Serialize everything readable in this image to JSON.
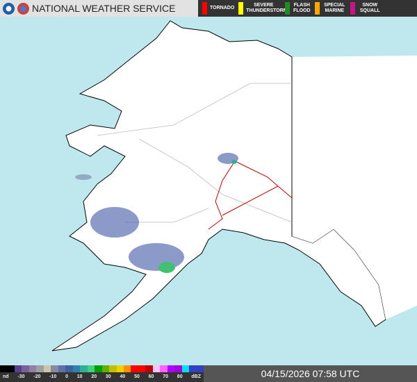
{
  "header": {
    "title": "NATIONAL WEATHER SERVICE"
  },
  "warnings": [
    {
      "label": "TORNADO",
      "color": "#ff0000"
    },
    {
      "label": "SEVERE THUNDERSTORM",
      "color": "#ffff00"
    },
    {
      "label": "FLASH FLOOD",
      "color": "#228b22"
    },
    {
      "label": "SPECIAL MARINE",
      "color": "#ffa500"
    },
    {
      "label": "SNOW SQUALL",
      "color": "#c71585"
    }
  ],
  "legend": {
    "labels": [
      "nd",
      "-30",
      "-20",
      "-10",
      "0",
      "10",
      "20",
      "30",
      "40",
      "50",
      "60",
      "70",
      "80",
      "dBZ"
    ],
    "colors": [
      "#000",
      "#000",
      "#5a3f8a",
      "#7a5fa0",
      "#9080a8",
      "#a0a0a0",
      "#c8c8a8",
      "#8888a0",
      "#6070a0",
      "#4060a0",
      "#3080b0",
      "#30b090",
      "#40d080",
      "#00a000",
      "#60b000",
      "#c0c000",
      "#f0d000",
      "#ff9000",
      "#ff0000",
      "#ff0000",
      "#c00000",
      "#ffc0ff",
      "#ff60ff",
      "#b000ff",
      "#a000e0",
      "#00e0f0",
      "#3040c0",
      "#3040c0"
    ],
    "unit": "dBZ"
  },
  "timestamp": "04/15/2026 07:58 UTC",
  "colors": {
    "ocean": "#bfe8ee",
    "land": "#ffffff",
    "radar": "#5a6fb0"
  }
}
